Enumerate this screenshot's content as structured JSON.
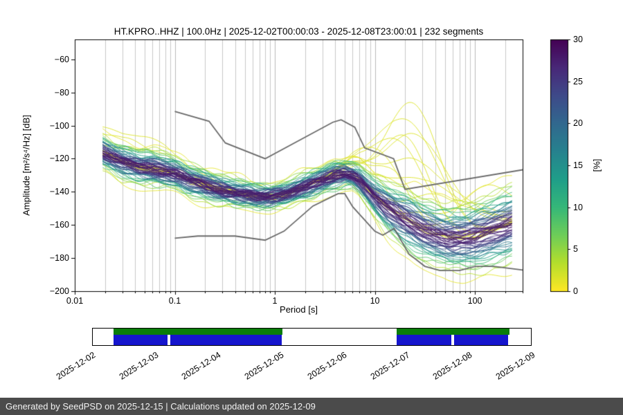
{
  "header": {
    "title": "HT.KPRO..HHZ | 100.0Hz | 2025-12-02T00:00:03 - 2025-12-08T23:00:01 | 232 segments"
  },
  "axes": {
    "xlabel": "Period [s]",
    "ylabel": "Amplitude [m²/s⁴/Hz] [dB]",
    "xlim": [
      0.01,
      300
    ],
    "ylim": [
      -200,
      -48
    ],
    "x_ticks": [
      {
        "v": 0.01,
        "label": "0.01"
      },
      {
        "v": 0.1,
        "label": "0.1"
      },
      {
        "v": 1,
        "label": "1"
      },
      {
        "v": 10,
        "label": "10"
      },
      {
        "v": 100,
        "label": "100"
      }
    ],
    "y_ticks": [
      {
        "v": -60,
        "label": "−60"
      },
      {
        "v": -80,
        "label": "−80"
      },
      {
        "v": -100,
        "label": "−100"
      },
      {
        "v": -120,
        "label": "−120"
      },
      {
        "v": -140,
        "label": "−140"
      },
      {
        "v": -160,
        "label": "−160"
      },
      {
        "v": -180,
        "label": "−180"
      },
      {
        "v": -200,
        "label": "−200"
      }
    ],
    "grid_color": "#c7c7c7"
  },
  "colorbar": {
    "label": "[%]",
    "min": 0,
    "max": 30,
    "ticks": [
      0,
      5,
      10,
      15,
      20,
      25,
      30
    ],
    "colormap": "viridis_r"
  },
  "chart_data": {
    "type": "ppsd_line_density",
    "title": "HT.KPRO..HHZ | 100.0Hz | 2025-12-02T00:00:03 - 2025-12-08T23:00:01 | 232 segments",
    "xlabel": "Period [s]",
    "ylabel": "Amplitude [m²/s⁴/Hz] [dB]",
    "x_range_s": [
      0.019,
      235
    ],
    "n_lines": 70,
    "max_percent": 28,
    "mode_curve_db": [
      [
        0.019,
        -116
      ],
      [
        0.03,
        -122
      ],
      [
        0.045,
        -125
      ],
      [
        0.06,
        -126
      ],
      [
        0.08,
        -127
      ],
      [
        0.1,
        -129
      ],
      [
        0.14,
        -133
      ],
      [
        0.2,
        -136
      ],
      [
        0.3,
        -139
      ],
      [
        0.45,
        -141
      ],
      [
        0.65,
        -143
      ],
      [
        0.9,
        -143
      ],
      [
        1.3,
        -141
      ],
      [
        2,
        -137
      ],
      [
        3,
        -133
      ],
      [
        4,
        -130
      ],
      [
        5,
        -129
      ],
      [
        6,
        -130
      ],
      [
        7,
        -133
      ],
      [
        8,
        -137
      ],
      [
        10,
        -143
      ],
      [
        13,
        -149
      ],
      [
        17,
        -154
      ],
      [
        22,
        -158
      ],
      [
        30,
        -163
      ],
      [
        40,
        -166
      ],
      [
        55,
        -168
      ],
      [
        75,
        -168
      ],
      [
        100,
        -167
      ],
      [
        140,
        -164
      ],
      [
        200,
        -161
      ],
      [
        240,
        -159
      ]
    ],
    "spread_db": [
      [
        0.019,
        5
      ],
      [
        0.05,
        5.5
      ],
      [
        0.1,
        5
      ],
      [
        0.3,
        4.5
      ],
      [
        0.9,
        3.5
      ],
      [
        2,
        4
      ],
      [
        4,
        4.5
      ],
      [
        6,
        4
      ],
      [
        8,
        5
      ],
      [
        10,
        6
      ],
      [
        15,
        8
      ],
      [
        25,
        10
      ],
      [
        40,
        10
      ],
      [
        70,
        10
      ],
      [
        120,
        11
      ],
      [
        240,
        12
      ]
    ],
    "outlier_bumps": [
      {
        "peak": 0.03,
        "amp": 14,
        "width": 0.5
      },
      {
        "peak": 0.05,
        "amp": 10,
        "width": 0.5
      },
      {
        "peak": 0.04,
        "amp": 18,
        "width": 0.6
      },
      {
        "peak": 8,
        "amp": 15,
        "width": 0.3
      },
      {
        "peak": 12,
        "amp": 30,
        "width": 0.35
      },
      {
        "peak": 15,
        "amp": 25,
        "width": 0.4
      },
      {
        "peak": 18,
        "amp": 45,
        "width": 0.4
      },
      {
        "peak": 20,
        "amp": 50,
        "width": 0.35
      },
      {
        "peak": 22,
        "amp": 62,
        "width": 0.45
      },
      {
        "peak": 25,
        "amp": 72,
        "width": 0.4
      },
      {
        "peak": 28,
        "amp": 55,
        "width": 0.5
      },
      {
        "peak": 30,
        "amp": 40,
        "width": 0.6
      },
      {
        "peak": 35,
        "amp": 30,
        "width": 0.6
      },
      {
        "peak": 50,
        "amp": 25,
        "width": 0.5
      },
      {
        "peak": 80,
        "amp": 20,
        "width": 0.5
      },
      {
        "peak": 120,
        "amp": 28,
        "width": 0.4
      }
    ],
    "noise_model_high_db": [
      [
        0.1,
        -91.5
      ],
      [
        0.22,
        -97.4
      ],
      [
        0.32,
        -110.5
      ],
      [
        0.8,
        -120.0
      ],
      [
        3.8,
        -98.0
      ],
      [
        4.6,
        -96.5
      ],
      [
        6.3,
        -101.0
      ],
      [
        7.9,
        -113.5
      ],
      [
        15.4,
        -120.0
      ],
      [
        20.0,
        -138.5
      ],
      [
        354.8,
        -126.0
      ]
    ],
    "noise_model_low_db": [
      [
        0.1,
        -168.0
      ],
      [
        0.17,
        -166.7
      ],
      [
        0.4,
        -166.7
      ],
      [
        0.8,
        -169.2
      ],
      [
        1.24,
        -163.7
      ],
      [
        2.4,
        -148.6
      ],
      [
        4.3,
        -141.1
      ],
      [
        5.0,
        -141.1
      ],
      [
        6.0,
        -149.0
      ],
      [
        10.0,
        -163.8
      ],
      [
        12.0,
        -166.2
      ],
      [
        15.6,
        -162.1
      ],
      [
        21.9,
        -177.5
      ],
      [
        31.6,
        -185.0
      ],
      [
        45.0,
        -187.5
      ],
      [
        70.0,
        -187.5
      ],
      [
        101.0,
        -185.0
      ],
      [
        154.0,
        -185.0
      ],
      [
        328.0,
        -187.5
      ]
    ],
    "noise_model_color": "#696969"
  },
  "availability": {
    "date_labels": [
      "2025-12-02",
      "2025-12-03",
      "2025-12-04",
      "2025-12-05",
      "2025-12-06",
      "2025-12-07",
      "2025-12-08",
      "2025-12-09"
    ],
    "green_segments": [
      [
        0.047,
        0.433
      ],
      [
        0.693,
        0.951
      ]
    ],
    "blue_segments": [
      [
        0.047,
        0.17
      ],
      [
        0.177,
        0.431
      ],
      [
        0.693,
        0.819
      ],
      [
        0.825,
        0.948
      ]
    ],
    "green_color": "#0a7d0a",
    "blue_color": "#1515cd"
  },
  "footer": {
    "text": "Generated by SeedPSD on 2025-12-15 | Calculations updated on 2025-12-09",
    "bg": "#4b4b4b"
  }
}
